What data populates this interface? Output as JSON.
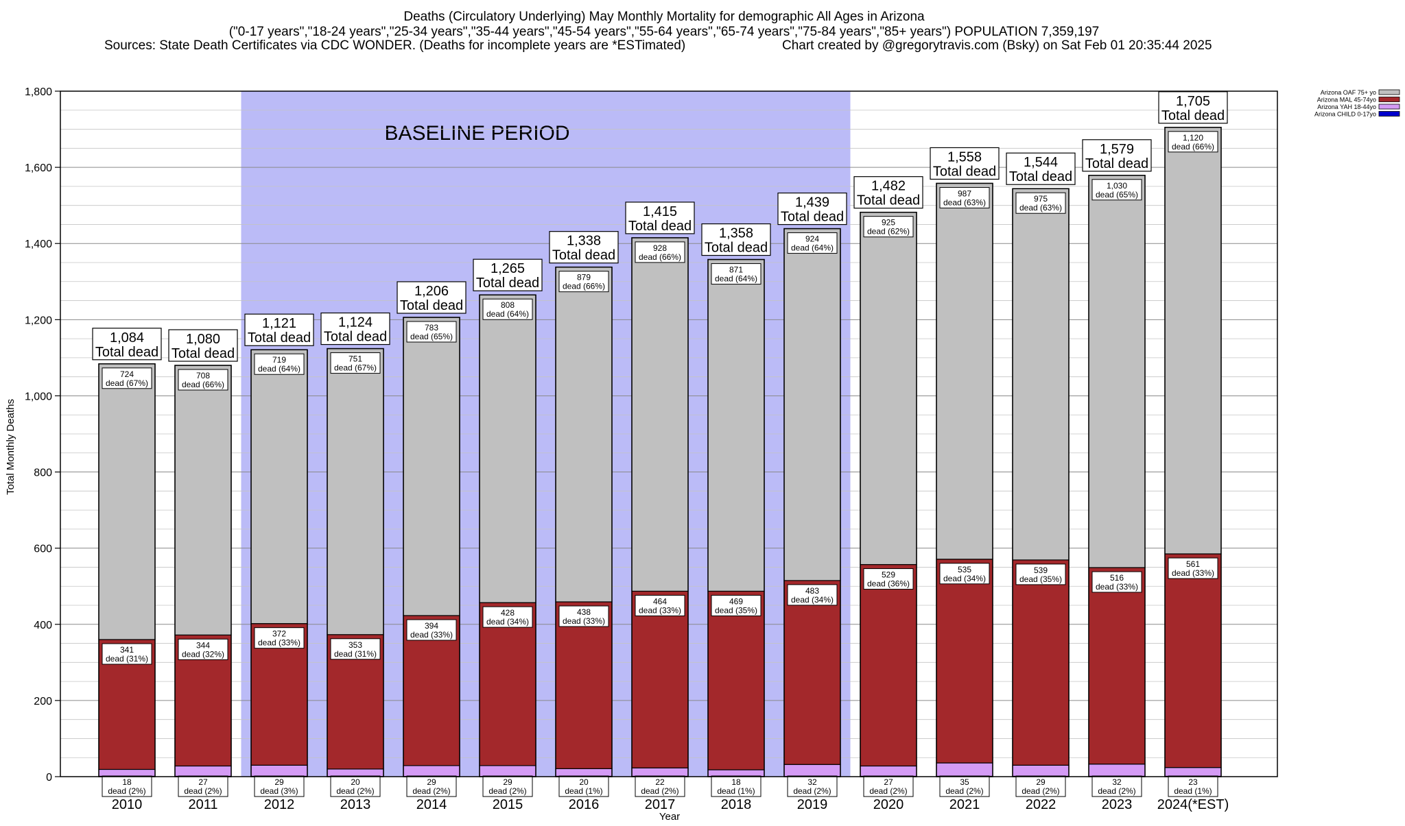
{
  "chart_data": {
    "type": "bar",
    "stacked": true,
    "title_lines": [
      "Deaths (Circulatory Underlying) May Monthly Mortality for demographic All Ages in Arizona",
      "(\"0-17 years\",\"18-24 years\",\"25-34 years\",\"35-44 years\",\"45-54 years\",\"55-64 years\",\"65-74 years\",\"75-84 years\",\"85+ years\") POPULATION 7,359,197"
    ],
    "source_text": "Sources: State Death Certificates via CDC WONDER. (Deaths for incomplete years are *ESTimated)",
    "credit_text": "Chart created by @gregorytravis.com (Bsky) on Sat Feb 01 20:35:44 2025",
    "xlabel": "Year",
    "ylabel": "Total Monthly Deaths",
    "ylim": [
      0,
      1800
    ],
    "yticks": [
      0,
      200,
      400,
      600,
      800,
      1000,
      1200,
      1400,
      1600,
      1800
    ],
    "ytick_labels": [
      "0",
      "200",
      "400",
      "600",
      "800",
      "1,000",
      "1,200",
      "1,400",
      "1,600",
      "1,800"
    ],
    "grid": true,
    "legend_position": "top-right",
    "categories": [
      "2010",
      "2011",
      "2012",
      "2013",
      "2014",
      "2015",
      "2016",
      "2017",
      "2018",
      "2019",
      "2020",
      "2021",
      "2022",
      "2023",
      "2024(*EST)"
    ],
    "baseline": {
      "label": "BASELINE PERIOD",
      "start_category": "2012",
      "end_category": "2019",
      "color": "#bbbbf7"
    },
    "total_label_suffix": "Total dead",
    "segment_label_word": "dead",
    "totals": [
      1084,
      1080,
      1121,
      1124,
      1206,
      1265,
      1338,
      1415,
      1358,
      1439,
      1482,
      1558,
      1544,
      1579,
      1705
    ],
    "totals_labels": [
      "1,084",
      "1,080",
      "1,121",
      "1,124",
      "1,206",
      "1,265",
      "1,338",
      "1,415",
      "1,358",
      "1,439",
      "1,482",
      "1,558",
      "1,544",
      "1,579",
      "1,705"
    ],
    "series": [
      {
        "name": "Arizona CHILD 0-17yo",
        "color": "#0000cc",
        "values": [
          1,
          1,
          1,
          0,
          0,
          0,
          1,
          1,
          0,
          0,
          1,
          1,
          1,
          1,
          1
        ],
        "pct_labels": [
          "",
          "",
          "",
          "",
          "",
          "",
          "",
          "",
          "",
          "",
          "",
          "",
          "",
          "",
          ""
        ]
      },
      {
        "name": "Arizona YAH 18-44yo",
        "color": "#d49bf5",
        "values": [
          18,
          27,
          29,
          20,
          29,
          29,
          20,
          22,
          18,
          32,
          27,
          35,
          29,
          32,
          23
        ],
        "pct_labels": [
          "(2%)",
          "(2%)",
          "(3%)",
          "(2%)",
          "(2%)",
          "(2%)",
          "(1%)",
          "(2%)",
          "(1%)",
          "(2%)",
          "(2%)",
          "(2%)",
          "(2%)",
          "(2%)",
          "(1%)"
        ]
      },
      {
        "name": "Arizona MAL 45-74yo",
        "color": "#a3282b",
        "values": [
          341,
          344,
          372,
          353,
          394,
          428,
          438,
          464,
          469,
          483,
          529,
          535,
          539,
          516,
          561
        ],
        "pct_labels": [
          "(31%)",
          "(32%)",
          "(33%)",
          "(31%)",
          "(33%)",
          "(34%)",
          "(33%)",
          "(33%)",
          "(35%)",
          "(34%)",
          "(36%)",
          "(34%)",
          "(35%)",
          "(33%)",
          "(33%)"
        ]
      },
      {
        "name": "Arizona OAF 75+ yo",
        "color": "#c0c0c0",
        "values": [
          724,
          708,
          719,
          751,
          783,
          808,
          879,
          928,
          871,
          924,
          925,
          987,
          975,
          1030,
          1120
        ],
        "pct_labels": [
          "(67%)",
          "(66%)",
          "(64%)",
          "(67%)",
          "(65%)",
          "(64%)",
          "(66%)",
          "(66%)",
          "(64%)",
          "(64%)",
          "(62%)",
          "(63%)",
          "(63%)",
          "(65%)",
          "(66%)"
        ]
      }
    ]
  }
}
